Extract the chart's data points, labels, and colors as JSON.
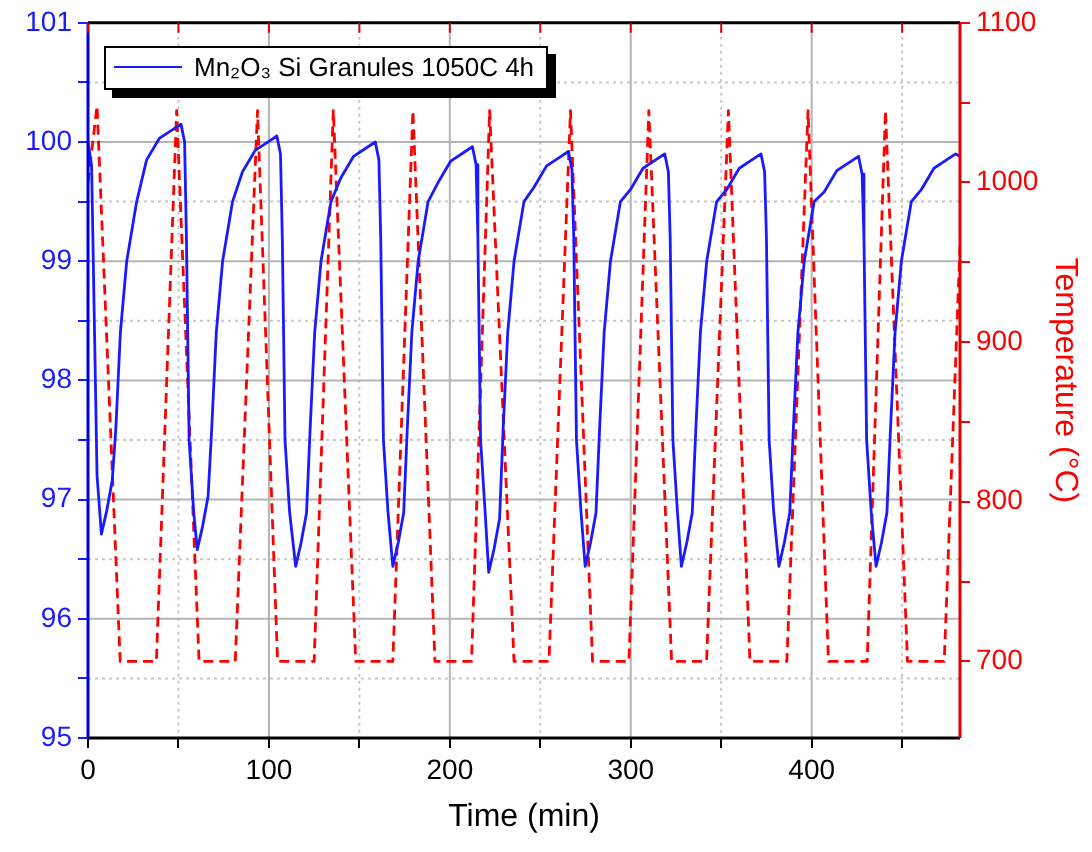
{
  "chart_data": {
    "type": "line",
    "xlabel": "Time (min)",
    "y2label": "Temperature (°C)",
    "xlim": [
      0,
      482
    ],
    "xticks": [
      0,
      {
        "value": 50,
        "label": null
      },
      100,
      {
        "value": 150,
        "label": null
      },
      200,
      {
        "value": 250,
        "label": null
      },
      300,
      {
        "value": 350,
        "label": null
      },
      400,
      {
        "value": 450,
        "label": null
      }
    ],
    "ylim": [
      95,
      101
    ],
    "yticks": [
      95,
      {
        "value": 95.5,
        "label": null
      },
      96,
      {
        "value": 96.5,
        "label": null
      },
      97,
      {
        "value": 97.5,
        "label": null
      },
      98,
      {
        "value": 98.5,
        "label": null
      },
      99,
      {
        "value": 99.5,
        "label": null
      },
      100,
      {
        "value": 100.5,
        "label": null
      },
      101
    ],
    "y2lim": [
      652,
      1100
    ],
    "y2ticks": [
      700,
      {
        "value": 750,
        "label": null
      },
      800,
      {
        "value": 850,
        "label": null
      },
      900,
      {
        "value": 950,
        "label": null
      },
      1000,
      {
        "value": 1050,
        "label": null
      },
      1100
    ],
    "grid": true,
    "legend": "top left",
    "marker": "none",
    "series": [
      {
        "name": "Mn₂O₃ Si Granules 1050C 4h",
        "color": "#1a1aff",
        "line_style": "solid",
        "x": [
          0,
          2,
          3.5,
          5,
          7.4,
          10.4,
          13.4,
          15.4,
          17.9,
          21.4,
          26.9,
          32.4,
          39.4,
          47.4,
          51.4,
          53.4,
          54.4,
          55.9,
          58.4,
          60.4,
          63.4,
          66.4,
          68.4,
          70.9,
          74.4,
          79.9,
          85.4,
          92.4,
          100.4,
          104.4,
          106.4,
          107.4,
          108.9,
          111.4,
          114.8,
          117.8,
          120.8,
          122.8,
          125.3,
          128.8,
          134.3,
          139.8,
          146.8,
          154.8,
          158.8,
          160.8,
          161.8,
          163.3,
          165.8,
          168.5,
          171.5,
          174.5,
          176.5,
          179,
          182.5,
          188,
          193.5,
          200.5,
          208.5,
          212.5,
          214.5,
          215.5,
          217,
          219.5,
          221.5,
          224.5,
          227.5,
          229.5,
          232,
          235.5,
          241,
          246.5,
          253.5,
          261.5,
          265.5,
          267.5,
          268.5,
          270,
          272.5,
          274.8,
          277.8,
          280.8,
          282.8,
          285.3,
          288.8,
          294.3,
          299.8,
          306.8,
          314.8,
          318.8,
          320.8,
          321.8,
          323.3,
          325.8,
          328,
          331,
          334,
          336,
          338.5,
          342,
          347.5,
          353,
          360,
          368,
          372,
          374,
          375,
          376.5,
          379,
          381.9,
          384.9,
          387.9,
          389.9,
          392.4,
          395.9,
          401.4,
          406.9,
          413.9,
          421.9,
          425.9,
          427.9,
          428.9,
          430.4,
          432.9,
          435.6,
          438.6,
          441.6,
          443.6,
          446.1,
          449.6,
          455.1,
          460.6,
          467.6,
          475.6,
          479.6,
          482
        ],
        "values": [
          100.0,
          99.8,
          98.5,
          97.2,
          96.71,
          96.91,
          97.16,
          97.6,
          98.4,
          99.0,
          99.5,
          99.85,
          100.03,
          100.11,
          100.15,
          100.0,
          99.2,
          97.5,
          96.9,
          96.58,
          96.78,
          97.03,
          97.6,
          98.4,
          99.0,
          99.5,
          99.75,
          99.93,
          100.01,
          100.05,
          99.9,
          99.2,
          97.5,
          96.9,
          96.44,
          96.64,
          96.89,
          97.6,
          98.4,
          99.0,
          99.5,
          99.7,
          99.88,
          99.96,
          100.0,
          99.85,
          99.2,
          97.5,
          96.9,
          96.44,
          96.64,
          96.89,
          97.6,
          98.4,
          99.0,
          99.5,
          99.66,
          99.84,
          99.92,
          99.96,
          99.81,
          99.2,
          97.5,
          96.9,
          96.39,
          96.59,
          96.84,
          97.6,
          98.4,
          99.0,
          99.5,
          99.62,
          99.8,
          99.88,
          99.92,
          99.77,
          99.2,
          97.5,
          96.9,
          96.44,
          96.64,
          96.89,
          97.6,
          98.4,
          99.0,
          99.5,
          99.6,
          99.78,
          99.86,
          99.9,
          99.75,
          99.2,
          97.5,
          96.9,
          96.44,
          96.64,
          96.89,
          97.6,
          98.4,
          99.0,
          99.5,
          99.6,
          99.78,
          99.86,
          99.9,
          99.75,
          99.2,
          97.5,
          96.9,
          96.44,
          96.64,
          96.89,
          97.6,
          98.4,
          99.0,
          99.5,
          99.58,
          99.76,
          99.84,
          99.88,
          99.73,
          99.2,
          97.5,
          96.9,
          96.44,
          96.64,
          96.89,
          97.6,
          98.4,
          99.0,
          99.5,
          99.6,
          99.78,
          99.86,
          99.9,
          99.88
        ]
      },
      {
        "color": "#ff0000",
        "line_style": "dashed",
        "axis": "y2",
        "x": [
          0,
          5,
          17.8,
          37.8,
          49,
          61.4,
          81.4,
          93.7,
          104.8,
          125,
          135.6,
          148,
          168.5,
          179.6,
          191.8,
          212,
          222,
          235.5,
          254.8,
          266.7,
          278.9,
          299,
          310,
          322.6,
          341.9,
          354,
          365.9,
          386.3,
          398,
          409.3,
          430.7,
          440.8,
          453,
          473.3,
          482
        ],
        "values": [
          1000,
          1048,
          700,
          700,
          1045,
          700,
          700,
          1045,
          700,
          700,
          1045,
          700,
          700,
          1045,
          700,
          700,
          1045,
          700,
          700,
          1045,
          700,
          700,
          1045,
          700,
          700,
          1045,
          700,
          700,
          1045,
          700,
          700,
          1045,
          700,
          700,
          960
        ]
      }
    ]
  }
}
